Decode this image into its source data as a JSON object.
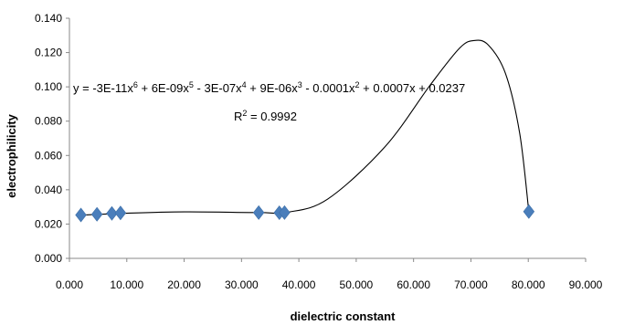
{
  "chart_data": {
    "type": "scatter",
    "xlabel": "dielectric constant",
    "ylabel": "electrophilicity",
    "xlim": [
      0,
      90
    ],
    "ylim": [
      0,
      0.14
    ],
    "xticks": [
      "0.000",
      "10.000",
      "20.000",
      "30.000",
      "40.000",
      "50.000",
      "60.000",
      "70.000",
      "80.000",
      "90.000"
    ],
    "yticks": [
      "0.000",
      "0.020",
      "0.040",
      "0.060",
      "0.080",
      "0.100",
      "0.120",
      "0.140"
    ],
    "grid": false,
    "marker_color": "#4a7ebb",
    "points": [
      {
        "x": 2.0,
        "y": 0.0253
      },
      {
        "x": 4.8,
        "y": 0.0257
      },
      {
        "x": 7.4,
        "y": 0.0262
      },
      {
        "x": 8.9,
        "y": 0.0265
      },
      {
        "x": 33.0,
        "y": 0.0267
      },
      {
        "x": 36.6,
        "y": 0.0266
      },
      {
        "x": 37.5,
        "y": 0.0267
      },
      {
        "x": 80.1,
        "y": 0.0273
      }
    ],
    "trendline": {
      "type": "polynomial",
      "order": 6,
      "color": "#000000",
      "equation": {
        "y": "y = -3E-11x",
        "e6": "6",
        "t2": " + 6E-09x",
        "e5": "5",
        "t3": " - 3E-07x",
        "e4": "4",
        "t4": " + 9E-06x",
        "e3": "3",
        "t5": " - 0.0001x",
        "e2": "2",
        "t6": " + 0.0007x + 0.0237"
      },
      "r_squared": {
        "prefix": "R",
        "exp": "2",
        "value": " = 0.9992"
      },
      "curve": [
        [
          2.0,
          0.0252
        ],
        [
          9.0,
          0.0262
        ],
        [
          20.0,
          0.0271
        ],
        [
          33.0,
          0.0267
        ],
        [
          38.0,
          0.0269
        ],
        [
          45.0,
          0.0345
        ],
        [
          55.0,
          0.065
        ],
        [
          63.0,
          0.1015
        ],
        [
          68.0,
          0.1225
        ],
        [
          70.5,
          0.127
        ],
        [
          73.0,
          0.1245
        ],
        [
          76.0,
          0.108
        ],
        [
          78.5,
          0.073
        ],
        [
          80.1,
          0.027
        ]
      ]
    }
  }
}
